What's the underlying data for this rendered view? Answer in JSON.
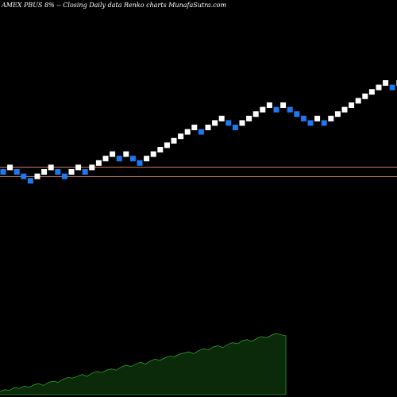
{
  "header": {
    "title": "AMEX  PBUS 8% -- Closing Daily data  Renko  charts MunafaSutra.com"
  },
  "chart_data": {
    "type": "renko",
    "title": "AMEX  PBUS 8% -- Closing Daily data  Renko  charts MunafaSutra.com",
    "brick_colors": {
      "up": "#ffffff",
      "down": "#1e78f0"
    },
    "background": "#000000",
    "reference_lines": {
      "color": "#c87850",
      "levels": [
        0,
        1.5
      ]
    },
    "bricks": [
      {
        "col": 0,
        "level": 0,
        "dir": "down"
      },
      {
        "col": 1,
        "level": 1,
        "dir": "up"
      },
      {
        "col": 2,
        "level": 0,
        "dir": "down"
      },
      {
        "col": 3,
        "level": -1,
        "dir": "down"
      },
      {
        "col": 4,
        "level": -2,
        "dir": "down"
      },
      {
        "col": 5,
        "level": -1,
        "dir": "up"
      },
      {
        "col": 6,
        "level": 0,
        "dir": "up"
      },
      {
        "col": 7,
        "level": 1,
        "dir": "up"
      },
      {
        "col": 8,
        "level": 0,
        "dir": "down"
      },
      {
        "col": 9,
        "level": -1,
        "dir": "down"
      },
      {
        "col": 10,
        "level": 0,
        "dir": "up"
      },
      {
        "col": 11,
        "level": 1,
        "dir": "up"
      },
      {
        "col": 12,
        "level": 0,
        "dir": "down"
      },
      {
        "col": 13,
        "level": 1,
        "dir": "up"
      },
      {
        "col": 14,
        "level": 2,
        "dir": "up"
      },
      {
        "col": 15,
        "level": 3,
        "dir": "up"
      },
      {
        "col": 16,
        "level": 4,
        "dir": "up"
      },
      {
        "col": 17,
        "level": 3,
        "dir": "down"
      },
      {
        "col": 18,
        "level": 4,
        "dir": "up"
      },
      {
        "col": 19,
        "level": 3,
        "dir": "down"
      },
      {
        "col": 20,
        "level": 2,
        "dir": "down"
      },
      {
        "col": 21,
        "level": 3,
        "dir": "up"
      },
      {
        "col": 22,
        "level": 4,
        "dir": "up"
      },
      {
        "col": 23,
        "level": 5,
        "dir": "up"
      },
      {
        "col": 24,
        "level": 6,
        "dir": "up"
      },
      {
        "col": 25,
        "level": 7,
        "dir": "up"
      },
      {
        "col": 26,
        "level": 8,
        "dir": "up"
      },
      {
        "col": 27,
        "level": 9,
        "dir": "up"
      },
      {
        "col": 28,
        "level": 10,
        "dir": "up"
      },
      {
        "col": 29,
        "level": 9,
        "dir": "down"
      },
      {
        "col": 30,
        "level": 10,
        "dir": "up"
      },
      {
        "col": 31,
        "level": 11,
        "dir": "up"
      },
      {
        "col": 32,
        "level": 12,
        "dir": "up"
      },
      {
        "col": 33,
        "level": 11,
        "dir": "down"
      },
      {
        "col": 34,
        "level": 10,
        "dir": "down"
      },
      {
        "col": 35,
        "level": 11,
        "dir": "up"
      },
      {
        "col": 36,
        "level": 12,
        "dir": "up"
      },
      {
        "col": 37,
        "level": 13,
        "dir": "up"
      },
      {
        "col": 38,
        "level": 14,
        "dir": "up"
      },
      {
        "col": 39,
        "level": 15,
        "dir": "up"
      },
      {
        "col": 40,
        "level": 14,
        "dir": "down"
      },
      {
        "col": 41,
        "level": 15,
        "dir": "up"
      },
      {
        "col": 42,
        "level": 14,
        "dir": "down"
      },
      {
        "col": 43,
        "level": 13,
        "dir": "down"
      },
      {
        "col": 44,
        "level": 12,
        "dir": "down"
      },
      {
        "col": 45,
        "level": 11,
        "dir": "down"
      },
      {
        "col": 46,
        "level": 12,
        "dir": "up"
      },
      {
        "col": 47,
        "level": 11,
        "dir": "down"
      },
      {
        "col": 48,
        "level": 12,
        "dir": "up"
      },
      {
        "col": 49,
        "level": 13,
        "dir": "up"
      },
      {
        "col": 50,
        "level": 14,
        "dir": "up"
      },
      {
        "col": 51,
        "level": 15,
        "dir": "up"
      },
      {
        "col": 52,
        "level": 16,
        "dir": "up"
      },
      {
        "col": 53,
        "level": 17,
        "dir": "up"
      },
      {
        "col": 54,
        "level": 18,
        "dir": "up"
      },
      {
        "col": 55,
        "level": 19,
        "dir": "up"
      },
      {
        "col": 56,
        "level": 20,
        "dir": "up"
      },
      {
        "col": 57,
        "level": 19,
        "dir": "down"
      },
      {
        "col": 58,
        "level": 20,
        "dir": "up"
      }
    ],
    "area": {
      "fill": "#0a2a0a",
      "stroke": "#3cc83c",
      "relative_values": [
        0.05,
        0.08,
        0.07,
        0.12,
        0.1,
        0.14,
        0.12,
        0.16,
        0.18,
        0.15,
        0.2,
        0.22,
        0.2,
        0.25,
        0.28,
        0.27,
        0.3,
        0.33,
        0.3,
        0.35,
        0.38,
        0.36,
        0.4,
        0.42,
        0.4,
        0.45,
        0.48,
        0.46,
        0.5,
        0.53,
        0.5,
        0.55,
        0.58,
        0.56,
        0.6,
        0.63,
        0.62,
        0.66,
        0.68,
        0.7,
        0.67,
        0.72,
        0.75,
        0.73,
        0.78,
        0.8,
        0.77,
        0.82,
        0.85,
        0.83,
        0.88,
        0.9,
        0.87,
        0.92,
        0.95,
        0.93,
        0.97,
        1.0,
        0.98,
        0.96
      ]
    }
  }
}
